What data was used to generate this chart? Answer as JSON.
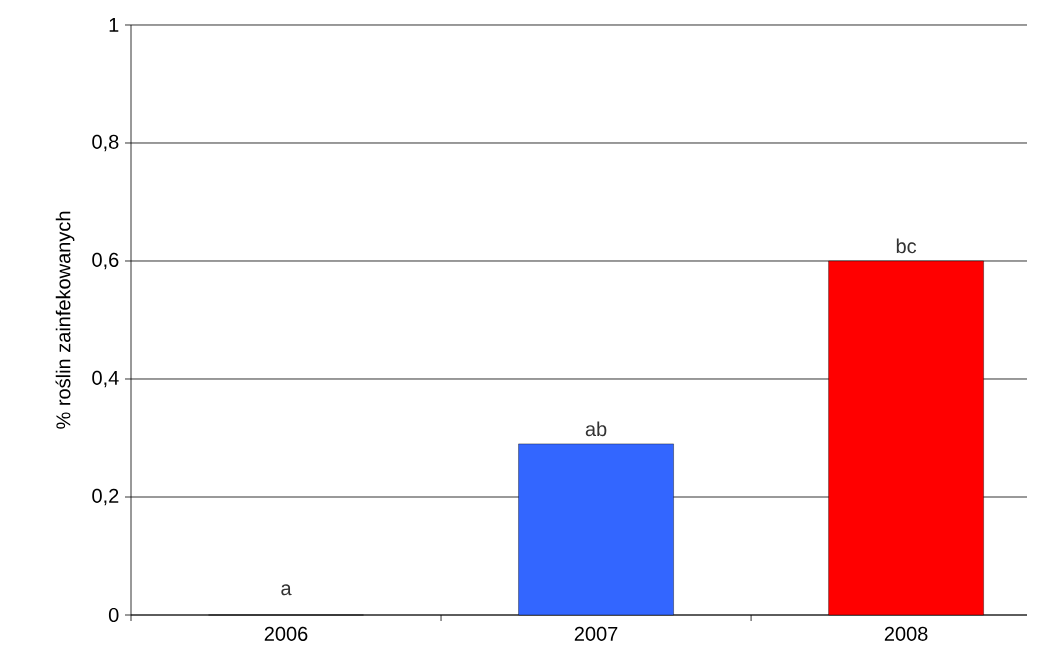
{
  "chart_data": {
    "type": "bar",
    "ylabel": "% roślin zainfekowanych",
    "categories": [
      "2006",
      "2007",
      "2008"
    ],
    "values": [
      0,
      0.29,
      0.6
    ],
    "colors": [
      "#3366ff",
      "#3366ff",
      "#ff0000"
    ],
    "value_labels": [
      "a",
      "ab",
      "bc"
    ],
    "ylim": [
      0,
      1
    ],
    "yticks": [
      0,
      {
        "value": 0.2,
        "label": "0,2"
      },
      {
        "value": 0.4,
        "label": "0,4"
      },
      {
        "value": 0.6,
        "label": "0,6"
      },
      {
        "value": 0.8,
        "label": "0,8"
      },
      1
    ],
    "grid": "y"
  }
}
